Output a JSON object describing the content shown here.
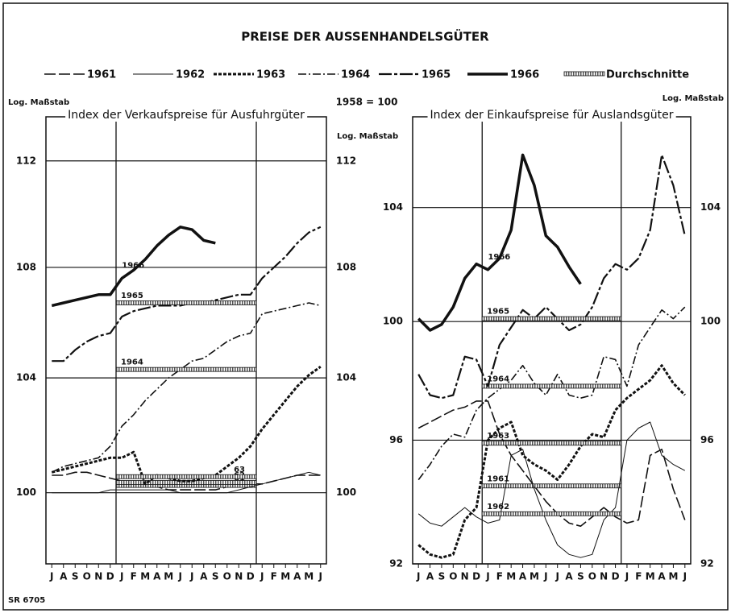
{
  "header": {
    "title": "PREISE DER AUSSENHANDELSGÜTER",
    "average_legend": "Durchschnitte",
    "base": "1958 = 100",
    "code": "SR 6705"
  },
  "chart_data": [
    {
      "type": "line",
      "title": "Index der Verkaufspreise für Ausfuhrgüter",
      "y_label": "Log. Maßstab",
      "y2_label": "Log. Maßstab",
      "log": true,
      "grid": true,
      "ylim": [
        97.6,
        113.7
      ],
      "yticks": [
        100,
        104,
        108,
        112
      ],
      "categories": [
        "J",
        "A",
        "S",
        "O",
        "N",
        "D",
        "J",
        "F",
        "M",
        "A",
        "M",
        "J",
        "J",
        "A",
        "S",
        "O",
        "N",
        "D",
        "J",
        "F",
        "M",
        "A",
        "M",
        "J"
      ],
      "series": [
        {
          "name": "1961",
          "color": "#111",
          "line_style": "long-dash",
          "avg": 100.25,
          "avg_label": "61",
          "values": [
            100.6,
            100.6,
            100.7,
            100.7,
            100.6,
            100.5,
            100.4,
            100.3,
            100.2,
            100.2,
            100.1,
            100.1,
            100.1,
            100.1,
            100.1,
            100.2,
            100.2,
            100.3,
            100.3,
            100.4,
            100.5,
            100.6,
            100.6,
            100.6
          ]
        },
        {
          "name": "1962",
          "color": "#111",
          "line_style": "thin",
          "avg": 100.35,
          "avg_label": "62",
          "values": [
            100.0,
            100.0,
            100.0,
            100.0,
            100.0,
            100.1,
            100.1,
            100.1,
            100.1,
            100.1,
            100.1,
            100.0,
            100.0,
            100.0,
            100.0,
            100.0,
            100.1,
            100.2,
            100.3,
            100.4,
            100.5,
            100.6,
            100.7,
            100.6
          ]
        },
        {
          "name": "1963",
          "color": "#111",
          "line_style": "dotted-thick",
          "avg": 100.55,
          "avg_label": "63",
          "values": [
            100.7,
            100.8,
            100.9,
            101.0,
            101.1,
            101.2,
            101.2,
            101.4,
            100.3,
            100.6,
            100.5,
            100.4,
            100.4,
            100.5,
            100.6,
            100.9,
            101.2,
            101.6,
            102.2,
            102.7,
            103.2,
            103.7,
            104.1,
            104.4
          ]
        },
        {
          "name": "1964",
          "color": "#111",
          "line_style": "dash-dot",
          "avg": 104.3,
          "avg_label": "1964",
          "values": [
            100.7,
            100.9,
            101.0,
            101.1,
            101.2,
            101.6,
            102.3,
            102.7,
            103.2,
            103.6,
            104.0,
            104.3,
            104.6,
            104.7,
            105.0,
            105.3,
            105.5,
            105.6,
            106.3,
            106.4,
            106.5,
            106.6,
            106.7,
            106.6
          ]
        },
        {
          "name": "1965",
          "color": "#111",
          "line_style": "dash-dash",
          "avg": 106.7,
          "avg_label": "1965",
          "values": [
            104.6,
            104.6,
            105.0,
            105.3,
            105.5,
            105.6,
            106.2,
            106.4,
            106.5,
            106.6,
            106.6,
            106.6,
            106.7,
            106.7,
            106.8,
            106.9,
            107.0,
            107.0,
            107.6,
            108.0,
            108.4,
            108.9,
            109.3,
            109.5
          ]
        },
        {
          "name": "1966",
          "color": "#111",
          "line_style": "thick",
          "line_label": "1966",
          "values": [
            106.6,
            106.7,
            106.8,
            106.9,
            107.0,
            107.0,
            107.6,
            107.9,
            108.3,
            108.8,
            109.2,
            109.5,
            109.4,
            109.0,
            108.9,
            null,
            null,
            null,
            null,
            null,
            null,
            null,
            null,
            null
          ]
        }
      ]
    },
    {
      "type": "line",
      "title": "Index der Einkaufspreise für Auslandsgüter",
      "y2_label": "Log. Maßstab",
      "log": true,
      "grid": true,
      "ylim": [
        92,
        107.3
      ],
      "yticks": [
        92,
        96,
        100,
        104
      ],
      "categories": [
        "J",
        "A",
        "S",
        "O",
        "N",
        "D",
        "J",
        "F",
        "M",
        "A",
        "M",
        "J",
        "J",
        "A",
        "S",
        "O",
        "N",
        "D",
        "J",
        "F",
        "M",
        "A",
        "M",
        "J"
      ],
      "series": [
        {
          "color": "#111",
          "line_style": "long-dash",
          "avg": 94.5,
          "avg_label": "1961",
          "values": [
            96.4,
            96.6,
            96.8,
            97.0,
            97.1,
            97.3,
            97.3,
            96.2,
            95.5,
            95.0,
            94.5,
            94.0,
            93.6,
            93.3,
            93.2,
            93.5,
            93.8,
            93.5,
            93.3,
            93.4,
            95.5,
            95.7,
            94.4,
            93.4
          ]
        },
        {
          "color": "#111",
          "line_style": "thin",
          "avg": 93.6,
          "avg_label": "1962",
          "values": [
            93.6,
            93.3,
            93.2,
            93.5,
            93.8,
            93.5,
            93.3,
            93.4,
            95.5,
            95.7,
            94.4,
            93.4,
            92.6,
            92.3,
            92.2,
            92.3,
            93.4,
            93.8,
            96.0,
            96.4,
            96.6,
            95.5,
            95.2,
            95.0
          ]
        },
        {
          "color": "#111",
          "line_style": "dotted-thick",
          "avg": 95.9,
          "avg_label": "1963",
          "values": [
            92.6,
            92.3,
            92.2,
            92.3,
            93.4,
            93.8,
            96.0,
            96.4,
            96.6,
            95.5,
            95.2,
            95.0,
            94.7,
            95.2,
            95.8,
            96.2,
            96.1,
            97.0,
            97.4,
            97.7,
            98.0,
            98.5,
            97.9,
            97.5
          ]
        },
        {
          "color": "#111",
          "line_style": "dash-dot",
          "avg": 97.8,
          "avg_label": "1964",
          "values": [
            94.7,
            95.2,
            95.8,
            96.2,
            96.1,
            97.0,
            97.4,
            97.7,
            98.0,
            98.5,
            97.9,
            97.5,
            98.2,
            97.5,
            97.4,
            97.5,
            98.8,
            98.7,
            97.8,
            99.2,
            99.8,
            100.4,
            100.1,
            100.5
          ]
        },
        {
          "color": "#111",
          "line_style": "dash-dash",
          "avg": 100.1,
          "avg_label": "1965",
          "values": [
            98.2,
            97.5,
            97.4,
            97.5,
            98.8,
            98.7,
            97.8,
            99.2,
            99.8,
            100.4,
            100.1,
            100.5,
            100.1,
            99.7,
            99.9,
            100.5,
            101.5,
            102.0,
            101.8,
            102.2,
            103.2,
            105.9,
            104.8,
            103.0
          ]
        },
        {
          "color": "#111",
          "line_style": "thick",
          "line_label": "1966",
          "values": [
            100.1,
            99.7,
            99.9,
            100.5,
            101.5,
            102.0,
            101.8,
            102.2,
            103.2,
            105.9,
            104.8,
            103.0,
            102.6,
            101.9,
            101.3,
            null,
            null,
            null,
            null,
            null,
            null,
            null,
            null,
            null
          ]
        }
      ]
    }
  ]
}
